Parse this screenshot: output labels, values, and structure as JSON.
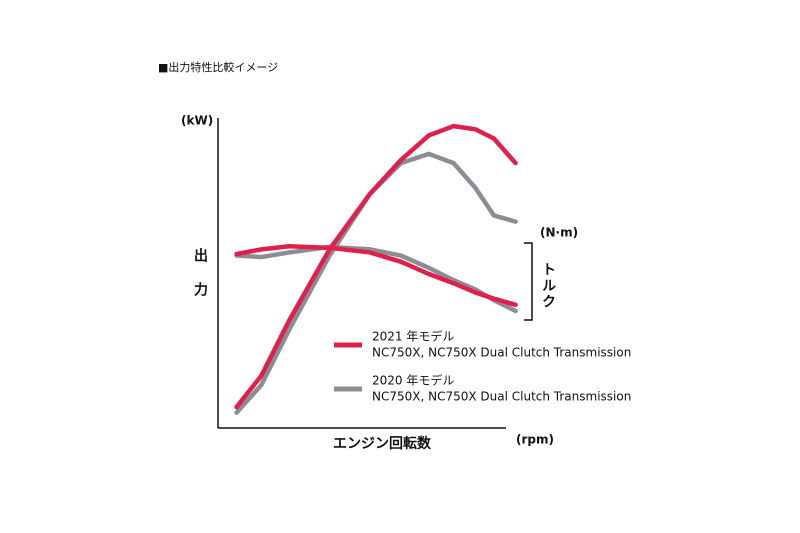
{
  "chart_data": {
    "type": "line",
    "title": "■出力特性比較イメージ",
    "y_label": "出力",
    "y_unit": "(kW)",
    "y2_label": "トルク",
    "y2_unit": "(N·m)",
    "x_label": "エンジン回転数",
    "x_unit": "(rpm)",
    "xlim": [
      0,
      100
    ],
    "ylim": [
      0,
      100
    ],
    "y2lim": [
      0,
      100
    ],
    "x": [
      6,
      14,
      23,
      36,
      49,
      59,
      68,
      76,
      83,
      89,
      96
    ],
    "series": [
      {
        "name": "2020 年モデル",
        "models": "NC750X, NC750X Dual Clutch Transmission",
        "color": "#8c8c94",
        "power": [
          5,
          14,
          32,
          56,
          76,
          86,
          89,
          86,
          78,
          69,
          67
        ],
        "torque": [
          56,
          55.5,
          57,
          58.8,
          58,
          56,
          52,
          48,
          45,
          41.5,
          38
        ]
      },
      {
        "name": "2021 年モデル",
        "models": "NC750X, NC750X Dual Clutch Transmission",
        "color": "#e0204a",
        "power": [
          6.8,
          17,
          35,
          58,
          76,
          87,
          95,
          98,
          97,
          94,
          86
        ],
        "torque": [
          56.5,
          58,
          59,
          58.5,
          57,
          54,
          50,
          47,
          44,
          42,
          40
        ]
      }
    ]
  }
}
